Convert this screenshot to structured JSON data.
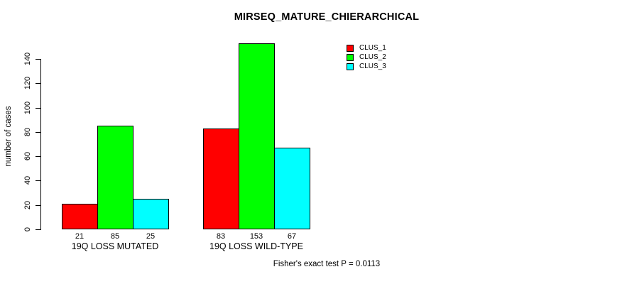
{
  "chart_data": {
    "type": "bar",
    "title": "MIRSEQ_MATURE_CHIERARCHICAL",
    "xlabel": "",
    "ylabel": "number of cases",
    "ylim": [
      0,
      140
    ],
    "y_ticks": [
      "0",
      "20",
      "40",
      "60",
      "80",
      "100",
      "120",
      "140"
    ],
    "grid": false,
    "legend_position": "top-right",
    "categories": [
      "19Q LOSS MUTATED",
      "19Q LOSS WILD-TYPE"
    ],
    "series": [
      {
        "name": "CLUS_1",
        "color": "#FF0000",
        "values": [
          21,
          83
        ]
      },
      {
        "name": "CLUS_2",
        "color": "#00FF00",
        "values": [
          85,
          153
        ]
      },
      {
        "name": "CLUS_3",
        "color": "#00FFFF",
        "values": [
          25,
          67
        ]
      }
    ],
    "bar_value_labels": [
      [
        21,
        85,
        25
      ],
      [
        83,
        153,
        67
      ]
    ],
    "footnote": "Fisher's exact test P = 0.0113"
  }
}
